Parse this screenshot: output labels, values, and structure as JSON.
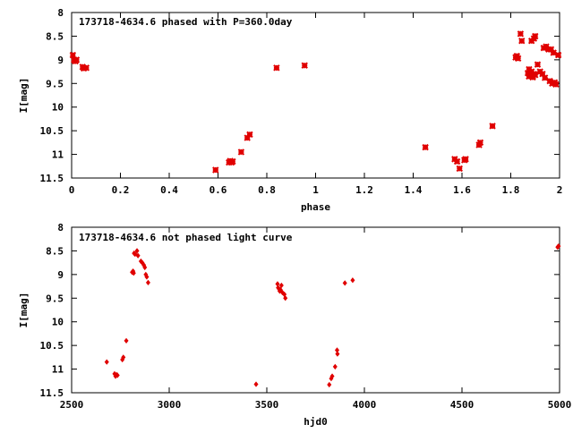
{
  "colors": {
    "points": "#e00000",
    "axes": "#000000",
    "background": "#ffffff"
  },
  "chart_data": [
    {
      "type": "scatter",
      "title": "173718-4634.6 phased with P=360.0day",
      "xlabel": "phase",
      "ylabel": "I[mag]",
      "xlim": [
        0,
        2
      ],
      "ylim": [
        11.5,
        8
      ],
      "y_inverted": true,
      "grid": false,
      "legend": "none",
      "xticks": [
        "0",
        "0.2",
        "0.4",
        "0.6",
        "0.8",
        "1",
        "1.2",
        "1.4",
        "1.6",
        "1.8",
        "2"
      ],
      "yticks": [
        "8",
        "8.5",
        "9",
        "9.5",
        "10",
        "10.5",
        "11",
        "11.5"
      ],
      "marker": "cross",
      "points": [
        [
          0.005,
          8.9
        ],
        [
          0.01,
          9.0
        ],
        [
          0.015,
          9.03
        ],
        [
          0.02,
          9.0
        ],
        [
          0.045,
          9.15
        ],
        [
          0.05,
          9.18
        ],
        [
          0.06,
          9.17
        ],
        [
          0.59,
          11.33
        ],
        [
          0.645,
          11.17
        ],
        [
          0.65,
          11.14
        ],
        [
          0.655,
          11.17
        ],
        [
          0.66,
          11.15
        ],
        [
          0.695,
          10.95
        ],
        [
          0.72,
          10.65
        ],
        [
          0.73,
          10.58
        ],
        [
          0.84,
          9.17
        ],
        [
          0.955,
          9.12
        ],
        [
          1.45,
          10.85
        ],
        [
          1.57,
          11.1
        ],
        [
          1.58,
          11.15
        ],
        [
          1.59,
          11.3
        ],
        [
          1.61,
          11.12
        ],
        [
          1.615,
          11.1
        ],
        [
          1.67,
          10.8
        ],
        [
          1.675,
          10.75
        ],
        [
          1.725,
          10.4
        ],
        [
          1.82,
          8.95
        ],
        [
          1.825,
          8.92
        ],
        [
          1.83,
          8.97
        ],
        [
          1.84,
          8.45
        ],
        [
          1.845,
          8.6
        ],
        [
          1.87,
          9.28
        ],
        [
          1.875,
          9.35
        ],
        [
          1.875,
          9.2
        ],
        [
          1.88,
          9.3
        ],
        [
          1.885,
          8.6
        ],
        [
          1.885,
          9.25
        ],
        [
          1.89,
          9.35
        ],
        [
          1.89,
          9.37
        ],
        [
          1.895,
          9.3
        ],
        [
          1.895,
          8.55
        ],
        [
          1.9,
          8.5
        ],
        [
          1.9,
          9.32
        ],
        [
          1.91,
          9.1
        ],
        [
          1.92,
          9.25
        ],
        [
          1.93,
          9.3
        ],
        [
          1.935,
          8.75
        ],
        [
          1.94,
          9.38
        ],
        [
          1.945,
          8.72
        ],
        [
          1.955,
          8.78
        ],
        [
          1.96,
          9.45
        ],
        [
          1.965,
          8.78
        ],
        [
          1.97,
          9.5
        ],
        [
          1.975,
          8.85
        ],
        [
          1.98,
          9.48
        ],
        [
          1.985,
          9.52
        ],
        [
          1.995,
          8.9
        ]
      ]
    },
    {
      "type": "scatter",
      "title": "173718-4634.6 not phased light curve",
      "xlabel": "hjd0",
      "ylabel": "I[mag]",
      "xlim": [
        2500,
        5000
      ],
      "ylim": [
        11.5,
        8
      ],
      "y_inverted": true,
      "grid": false,
      "legend": "none",
      "xticks": [
        "2500",
        "3000",
        "3500",
        "4000",
        "4500",
        "5000"
      ],
      "yticks": [
        "8",
        "8.5",
        "9",
        "9.5",
        "10",
        "10.5",
        "11",
        "11.5"
      ],
      "marker": "diamond",
      "points": [
        [
          2680,
          10.85
        ],
        [
          2720,
          11.1
        ],
        [
          2725,
          11.15
        ],
        [
          2730,
          11.12
        ],
        [
          2735,
          11.13
        ],
        [
          2760,
          10.8
        ],
        [
          2765,
          10.75
        ],
        [
          2780,
          10.4
        ],
        [
          2810,
          8.95
        ],
        [
          2815,
          8.93
        ],
        [
          2818,
          8.97
        ],
        [
          2820,
          8.55
        ],
        [
          2825,
          8.57
        ],
        [
          2835,
          8.5
        ],
        [
          2840,
          8.6
        ],
        [
          2855,
          8.72
        ],
        [
          2862,
          8.75
        ],
        [
          2870,
          8.8
        ],
        [
          2875,
          8.85
        ],
        [
          2880,
          9.0
        ],
        [
          2885,
          9.05
        ],
        [
          2892,
          9.17
        ],
        [
          3445,
          11.32
        ],
        [
          3555,
          9.2
        ],
        [
          3558,
          9.28
        ],
        [
          3562,
          9.3
        ],
        [
          3566,
          9.35
        ],
        [
          3570,
          9.32
        ],
        [
          3575,
          9.23
        ],
        [
          3580,
          9.38
        ],
        [
          3590,
          9.42
        ],
        [
          3595,
          9.5
        ],
        [
          3820,
          11.33
        ],
        [
          3830,
          11.2
        ],
        [
          3835,
          11.15
        ],
        [
          3850,
          10.95
        ],
        [
          3860,
          10.6
        ],
        [
          3862,
          10.68
        ],
        [
          3900,
          9.18
        ],
        [
          3940,
          9.12
        ],
        [
          4990,
          8.42
        ],
        [
          4995,
          8.4
        ]
      ]
    }
  ]
}
